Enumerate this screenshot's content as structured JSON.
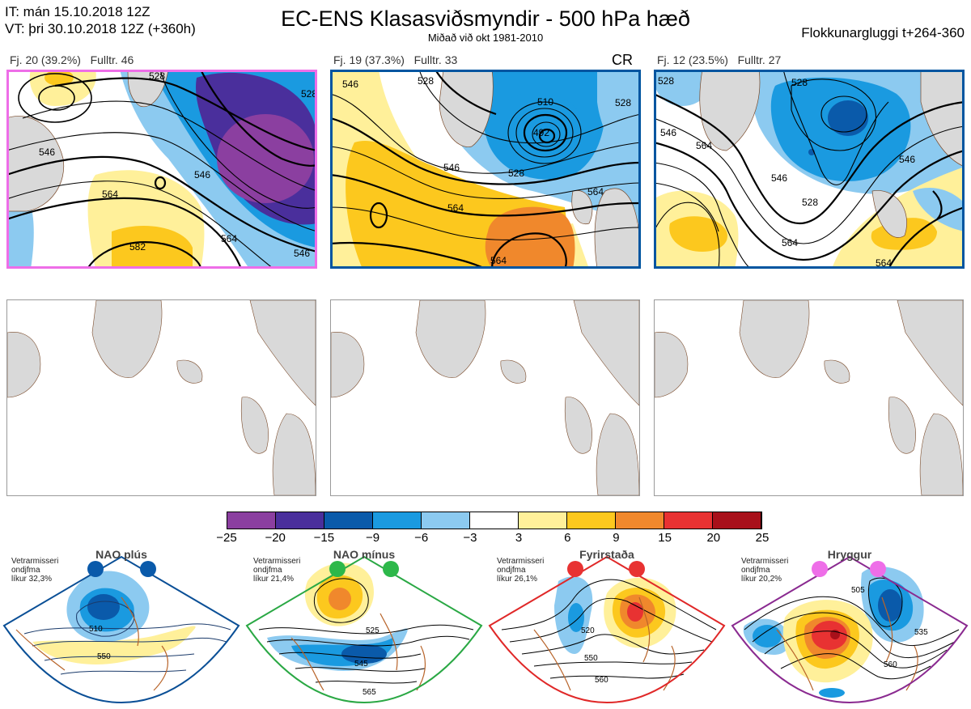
{
  "header": {
    "issue_time": "IT: mán 15.10.2018 12Z",
    "valid_time": "VT: þri 30.10.2018 12Z  (+360h)",
    "title": "EC-ENS Klasasviðsmyndir - 500 hPa hæð",
    "subtitle": "Miðað við okt 1981-2010",
    "window": "Flokkunargluggi t+264-360"
  },
  "clusters": [
    {
      "label": "Fj. 20 (39.2%)   Fulltr. 46",
      "border_color": "#ee6ee8",
      "tag": "",
      "contours": [
        "528",
        "528",
        "546",
        "546",
        "564",
        "564",
        "582",
        "546"
      ]
    },
    {
      "label": "Fj. 19 (37.3%)   Fulltr. 33",
      "border_color": "#0055a0",
      "tag": "CR",
      "contours": [
        "528",
        "546",
        "510",
        "492",
        "528",
        "546",
        "564",
        "564",
        "528",
        "564"
      ]
    },
    {
      "label": "Fj. 12 (23.5%)   Fulltr. 27",
      "border_color": "#0055a0",
      "tag": "",
      "contours": [
        "528",
        "528",
        "546",
        "564",
        "546",
        "528",
        "546",
        "564",
        "564"
      ]
    }
  ],
  "colorbar": {
    "colors": [
      "#8b3fa0",
      "#4a2f9c",
      "#0a5aaa",
      "#1a9ae0",
      "#8ccaf0",
      "#ffffff",
      "#fff09a",
      "#fcc81e",
      "#f0882c",
      "#e83232",
      "#a8101a"
    ],
    "ticks": [
      "−25",
      "−20",
      "−15",
      "−9",
      "−6",
      "−3",
      "3",
      "6",
      "9",
      "15",
      "20",
      "25"
    ]
  },
  "climatology": [
    {
      "title": "NAO plús",
      "text": "Vetrarmisseri\nondjfma\nlíkur 32,3%",
      "color": "#0a5aaa",
      "border": "#0a4f96",
      "contours": [
        "510",
        "550"
      ]
    },
    {
      "title": "NAO mínus",
      "text": "Vetrarmisseri\nondjfma\nlíkur 21,4%",
      "color": "#2db84a",
      "border": "#2aa844",
      "contours": [
        "525",
        "545",
        "565"
      ]
    },
    {
      "title": "Fyrirstaða",
      "text": "Vetrarmisseri\nondjfma\nlíkur 26,1%",
      "color": "#e83232",
      "border": "#e02828",
      "contours": [
        "520",
        "550",
        "560"
      ]
    },
    {
      "title": "Hryggur",
      "text": "Vetrarmisseri\nondjfma\nlíkur 20,2%",
      "color": "#ee6ee8",
      "border": "#8a2a90",
      "contours": [
        "505",
        "535",
        "560"
      ]
    }
  ]
}
